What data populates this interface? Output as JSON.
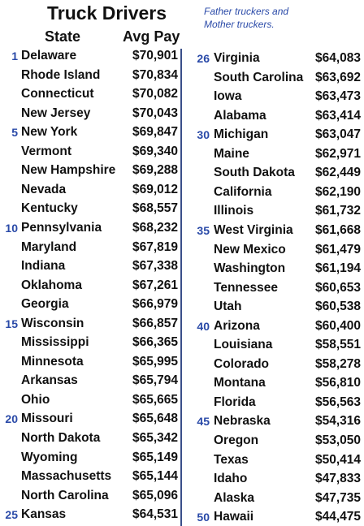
{
  "header": {
    "title": "Truck Drivers",
    "note": [
      "Father truckers and",
      "Mother truckers."
    ],
    "columns": [
      "State",
      "Avg Pay"
    ]
  },
  "table": {
    "left": [
      {
        "rank": "1",
        "state": "Delaware",
        "pay": "$70,901"
      },
      {
        "state": "Rhode Island",
        "pay": "$70,834"
      },
      {
        "state": "Connecticut",
        "pay": "$70,082"
      },
      {
        "state": "New Jersey",
        "pay": "$70,043"
      },
      {
        "rank": "5",
        "state": "New York",
        "pay": "$69,847"
      },
      {
        "state": "Vermont",
        "pay": "$69,340"
      },
      {
        "state": "New Hampshire",
        "pay": "$69,288"
      },
      {
        "state": "Nevada",
        "pay": "$69,012"
      },
      {
        "state": "Kentucky",
        "pay": "$68,557"
      },
      {
        "rank": "10",
        "state": "Pennsylvania",
        "pay": "$68,232"
      },
      {
        "state": "Maryland",
        "pay": "$67,819"
      },
      {
        "state": "Indiana",
        "pay": "$67,338"
      },
      {
        "state": "Oklahoma",
        "pay": "$67,261"
      },
      {
        "state": "Georgia",
        "pay": "$66,979"
      },
      {
        "rank": "15",
        "state": "Wisconsin",
        "pay": "$66,857"
      },
      {
        "state": "Mississippi",
        "pay": "$66,365"
      },
      {
        "state": "Minnesota",
        "pay": "$65,995"
      },
      {
        "state": "Arkansas",
        "pay": "$65,794"
      },
      {
        "state": "Ohio",
        "pay": "$65,665"
      },
      {
        "rank": "20",
        "state": "Missouri",
        "pay": "$65,648"
      },
      {
        "state": "North Dakota",
        "pay": "$65,342"
      },
      {
        "state": "Wyoming",
        "pay": "$65,149"
      },
      {
        "state": "Massachusetts",
        "pay": "$65,144"
      },
      {
        "state": "North Carolina",
        "pay": "$65,096"
      },
      {
        "rank": "25",
        "state": "Kansas",
        "pay": "$64,531"
      }
    ],
    "right": [
      {
        "rank": "26",
        "state": "Virginia",
        "pay": "$64,083"
      },
      {
        "state": "South Carolina",
        "pay": "$63,692"
      },
      {
        "state": "Iowa",
        "pay": "$63,473"
      },
      {
        "state": "Alabama",
        "pay": "$63,414"
      },
      {
        "rank": "30",
        "state": "Michigan",
        "pay": "$63,047"
      },
      {
        "state": "Maine",
        "pay": "$62,971"
      },
      {
        "state": "South Dakota",
        "pay": "$62,449"
      },
      {
        "state": "California",
        "pay": "$62,190"
      },
      {
        "state": "Illinois",
        "pay": "$61,732"
      },
      {
        "rank": "35",
        "state": "West Virginia",
        "pay": "$61,668"
      },
      {
        "state": "New Mexico",
        "pay": "$61,479"
      },
      {
        "state": "Washington",
        "pay": "$61,194"
      },
      {
        "state": "Tennessee",
        "pay": "$60,653"
      },
      {
        "state": "Utah",
        "pay": "$60,538"
      },
      {
        "rank": "40",
        "state": "Arizona",
        "pay": "$60,400"
      },
      {
        "state": "Louisiana",
        "pay": "$58,551"
      },
      {
        "state": "Colorado",
        "pay": "$58,278"
      },
      {
        "state": "Montana",
        "pay": "$56,810"
      },
      {
        "state": "Florida",
        "pay": "$56,563"
      },
      {
        "rank": "45",
        "state": "Nebraska",
        "pay": "$54,316"
      },
      {
        "state": "Oregon",
        "pay": "$53,050"
      },
      {
        "state": "Texas",
        "pay": "$50,414"
      },
      {
        "state": "Idaho",
        "pay": "$47,833"
      },
      {
        "state": "Alaska",
        "pay": "$47,735"
      },
      {
        "rank": "50",
        "state": "Hawaii",
        "pay": "$44,475"
      }
    ]
  }
}
